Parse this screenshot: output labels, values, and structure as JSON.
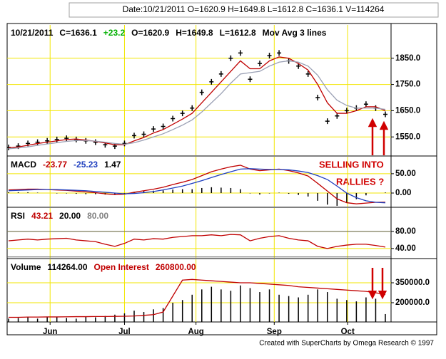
{
  "header": "Date:10/21/2011 O=1620.9 H=1649.8 L=1612.8 C=1636.1 V=114264",
  "footer": "Created with SuperCharts by Omega Research © 1997",
  "chart_data": [
    {
      "type": "price",
      "legend": [
        {
          "text": "10/21/2011",
          "color": "#000000"
        },
        {
          "text": "C=1636.1",
          "color": "#000000"
        },
        {
          "text": "+23.2",
          "color": "#00b000"
        },
        {
          "text": "O=1620.9",
          "color": "#000000"
        },
        {
          "text": "H=1649.8",
          "color": "#000000"
        },
        {
          "text": "L=1612.8",
          "color": "#000000"
        },
        {
          "text": "Mov Avg 3 lines",
          "color": "#000000"
        }
      ],
      "annotations": [
        "SELLING INTO",
        "RALLIES ?"
      ],
      "color": "#000000",
      "values": [
        1510,
        1515,
        1525,
        1530,
        1535,
        1540,
        1545,
        1540,
        1535,
        1530,
        1520,
        1515,
        1525,
        1555,
        1560,
        1580,
        1590,
        1620,
        1640,
        1660,
        1720,
        1760,
        1790,
        1850,
        1870,
        1770,
        1830,
        1860,
        1870,
        1840,
        1820,
        1790,
        1700,
        1610,
        1630,
        1650,
        1660,
        1675,
        1660,
        1636.1
      ],
      "series": [
        {
          "color": "#c00000",
          "values": [
            1508,
            1512,
            1518,
            1525,
            1530,
            1535,
            1540,
            1542,
            1538,
            1533,
            1527,
            1520,
            1520,
            1535,
            1548,
            1565,
            1578,
            1598,
            1618,
            1640,
            1680,
            1720,
            1760,
            1800,
            1840,
            1810,
            1810,
            1840,
            1855,
            1850,
            1830,
            1805,
            1750,
            1680,
            1640,
            1640,
            1650,
            1665,
            1665,
            1650
          ]
        },
        {
          "color": "#9aa0b4",
          "values": [
            1505,
            1508,
            1512,
            1518,
            1523,
            1528,
            1533,
            1536,
            1536,
            1534,
            1530,
            1525,
            1522,
            1528,
            1538,
            1550,
            1562,
            1578,
            1595,
            1615,
            1645,
            1680,
            1715,
            1755,
            1790,
            1795,
            1800,
            1820,
            1835,
            1840,
            1835,
            1820,
            1785,
            1730,
            1690,
            1670,
            1660,
            1660,
            1660,
            1655
          ]
        }
      ],
      "xlim": [
        0,
        39
      ],
      "ylim": [
        1480,
        1977
      ],
      "yticks": [
        {
          "value": 1850,
          "label": "1850.0"
        },
        {
          "value": 1750,
          "label": "1750.0"
        },
        {
          "value": 1650,
          "label": "1650.0"
        },
        {
          "value": 1550,
          "label": "1550.0"
        }
      ],
      "grid": true
    },
    {
      "type": "macd",
      "legend": [
        {
          "text": "MACD",
          "color": "#000000"
        },
        {
          "value": -23.77,
          "color": "#c00000"
        },
        {
          "value": -25.23,
          "color": "#1f3fbf"
        },
        {
          "value": 1.47,
          "color": "#000000"
        }
      ],
      "color": "#000000",
      "values": [
        2,
        2,
        2,
        1,
        0,
        -1,
        -1,
        -2,
        -3,
        -3,
        -4,
        -4,
        -1,
        3,
        5,
        6,
        7,
        9,
        10,
        10,
        13,
        15,
        14,
        13,
        10,
        -1,
        -4,
        -1,
        1,
        -2,
        -5,
        -9,
        -20,
        -30,
        -33,
        -25,
        -16,
        -6,
        0,
        1.47
      ],
      "series": [
        {
          "color": "#c00000",
          "values": [
            8,
            9,
            10,
            10,
            9,
            8,
            7,
            5,
            3,
            1,
            -2,
            -4,
            -3,
            2,
            6,
            10,
            15,
            22,
            28,
            35,
            45,
            55,
            62,
            68,
            72,
            62,
            58,
            60,
            62,
            58,
            52,
            44,
            25,
            5,
            -15,
            -25,
            -28,
            -26,
            -24,
            -23.77
          ]
        },
        {
          "color": "#1f3fbf",
          "values": [
            6,
            7,
            8,
            9,
            9,
            9,
            8,
            7,
            6,
            4,
            2,
            0,
            -2,
            -1,
            1,
            4,
            8,
            13,
            18,
            25,
            32,
            40,
            48,
            55,
            62,
            63,
            62,
            61,
            61,
            60,
            57,
            53,
            45,
            35,
            18,
            0,
            -12,
            -20,
            -24,
            -25.23
          ]
        }
      ],
      "xlim": [
        0,
        39
      ],
      "ylim": [
        -35,
        94
      ],
      "yticks": [
        {
          "value": 50,
          "label": "50.00"
        },
        {
          "value": 0,
          "label": "0.00"
        }
      ],
      "grid": true
    },
    {
      "type": "rsi",
      "legend": [
        {
          "text": "RSI",
          "color": "#000000"
        },
        {
          "value": 43.21,
          "color": "#c00000"
        },
        {
          "value": 20,
          "label": "20.00",
          "color": "#000000"
        },
        {
          "value": 80,
          "label": "80.00",
          "color": "#808080"
        }
      ],
      "levels": [
        20,
        80
      ],
      "series": [
        {
          "color": "#c00000",
          "values": [
            58,
            60,
            62,
            60,
            62,
            63,
            64,
            60,
            58,
            56,
            50,
            45,
            52,
            62,
            60,
            63,
            62,
            66,
            68,
            70,
            70,
            72,
            70,
            73,
            72,
            58,
            64,
            68,
            70,
            64,
            60,
            58,
            45,
            40,
            45,
            48,
            50,
            50,
            47,
            43.21
          ]
        }
      ],
      "xlim": [
        0,
        39
      ],
      "ylim": [
        18,
        135
      ],
      "yticks": [
        {
          "value": 80,
          "label": "80.00"
        },
        {
          "value": 40,
          "label": "40.00"
        }
      ],
      "grid": true
    },
    {
      "type": "volume",
      "legend": [
        {
          "text": "Volume",
          "color": "#000000"
        },
        {
          "value": 114264,
          "label": "114264.00",
          "color": "#000000"
        },
        {
          "text": "Open Interest",
          "color": "#c00000"
        },
        {
          "value": 260800,
          "label": "260800.00",
          "color": "#c00000"
        }
      ],
      "color": "#000000",
      "values": [
        80000,
        85000,
        90000,
        80000,
        95000,
        90000,
        85000,
        80000,
        95000,
        90000,
        100000,
        110000,
        120000,
        140000,
        130000,
        150000,
        160000,
        200000,
        220000,
        260000,
        300000,
        320000,
        300000,
        290000,
        330000,
        310000,
        280000,
        300000,
        260000,
        250000,
        240000,
        260000,
        300000,
        280000,
        230000,
        220000,
        210000,
        240000,
        230000,
        114264
      ],
      "series": [
        {
          "color": "#c00000",
          "values": [
            90000,
            90000,
            92000,
            92000,
            93000,
            93000,
            94000,
            95000,
            95000,
            96000,
            96000,
            97000,
            98000,
            100000,
            105000,
            110000,
            130000,
            250000,
            370000,
            375000,
            370000,
            365000,
            360000,
            355000,
            350000,
            350000,
            345000,
            340000,
            335000,
            330000,
            320000,
            315000,
            310000,
            305000,
            300000,
            295000,
            290000,
            285000,
            275000,
            260800
          ]
        }
      ],
      "xlim": [
        0,
        39
      ],
      "ylim": [
        55000,
        527000
      ],
      "yticks": [
        {
          "value": 350000,
          "label": "350000.0"
        },
        {
          "value": 200000,
          "label": "200000.0"
        }
      ],
      "xticks": [
        {
          "value": 4.3,
          "label": "Jun"
        },
        {
          "value": 12.0,
          "label": "Jul"
        },
        {
          "value": 19.4,
          "label": "Aug"
        },
        {
          "value": 27.5,
          "label": "Sep"
        },
        {
          "value": 35.1,
          "label": "Oct"
        }
      ],
      "grid": true
    }
  ]
}
